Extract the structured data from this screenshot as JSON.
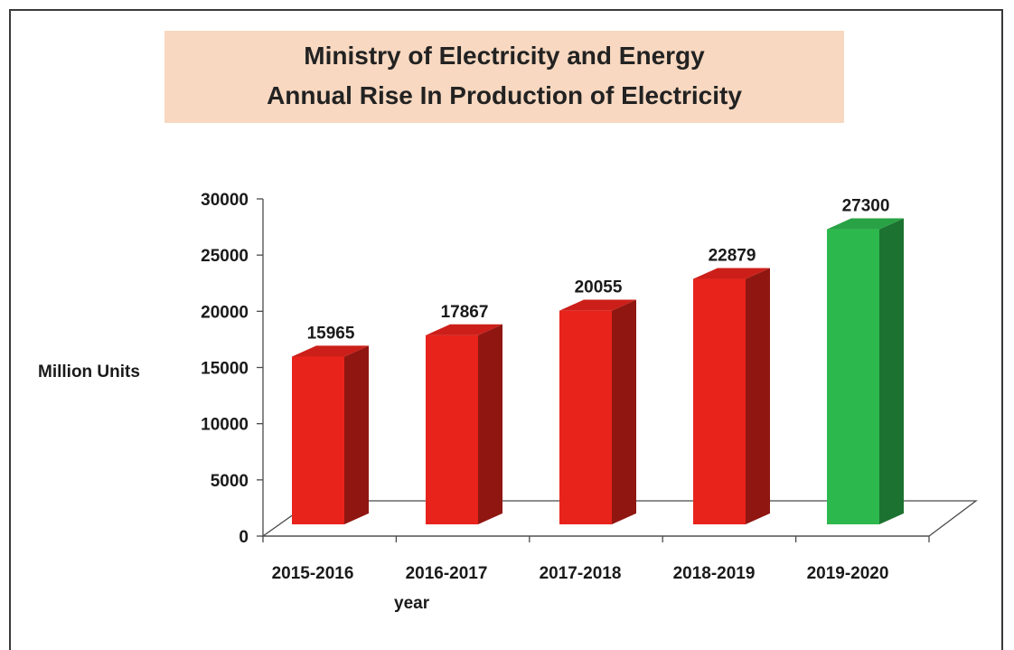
{
  "title": {
    "line1": "Ministry of Electricity and Energy",
    "line2": "Annual Rise In Production of Electricity"
  },
  "colors": {
    "bar_default": "#e8231c",
    "bar_highlight": "#2db84d",
    "title_background": "#f8d8c0"
  },
  "chart_data": {
    "type": "bar",
    "title": "Ministry of Electricity and Energy Annual Rise In Production of Electricity",
    "xlabel": "year",
    "ylabel": "Million Units",
    "categories": [
      "2015-2016",
      "2016-2017",
      "2017-2018",
      "2018-2019",
      "2019-2020"
    ],
    "values": [
      15965,
      17867,
      20055,
      22879,
      27300
    ],
    "data_labels": [
      "15965",
      "17867",
      "20055",
      "22879",
      "27300"
    ],
    "bar_colors": [
      "#e8231c",
      "#e8231c",
      "#e8231c",
      "#e8231c",
      "#2db84d"
    ],
    "ylim": [
      0,
      30000
    ],
    "yticks": [
      "0",
      "5000",
      "10000",
      "15000",
      "20000",
      "25000",
      "30000"
    ],
    "ytick_values": [
      0,
      5000,
      10000,
      15000,
      20000,
      25000,
      30000
    ],
    "style": "3d",
    "grid": false,
    "legend": "none"
  }
}
